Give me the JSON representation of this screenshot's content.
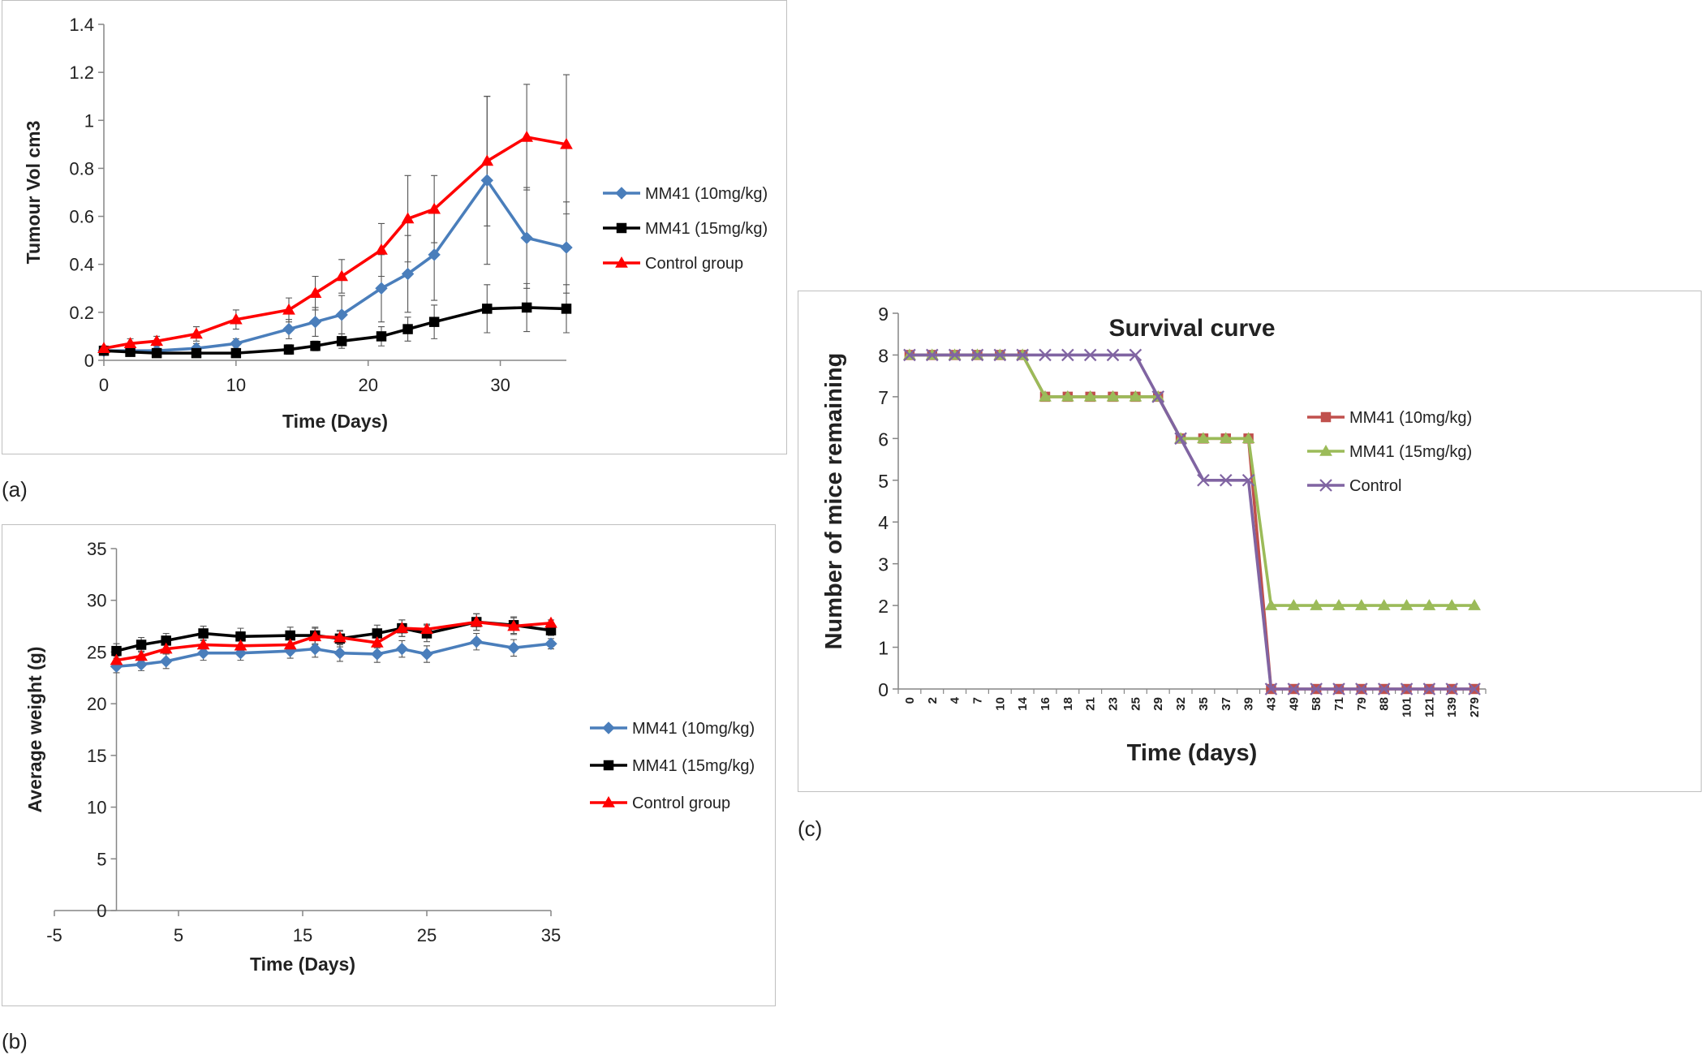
{
  "panels": {
    "a": {
      "label": "(a)"
    },
    "b": {
      "label": "(b)"
    },
    "c": {
      "label": "(c)"
    }
  },
  "chart_data": [
    {
      "id": "a",
      "type": "line",
      "title": "",
      "xlabel": "Time (Days)",
      "ylabel": "Tumour Vol cm3",
      "xlim": [
        0,
        35
      ],
      "ylim": [
        0,
        1.4
      ],
      "xticks": [
        0,
        10,
        20,
        30
      ],
      "yticks": [
        0,
        0.2,
        0.4,
        0.6,
        0.8,
        1,
        1.2,
        1.4
      ],
      "ytick_labels": [
        "0",
        "0.2",
        "0.4",
        "0.6",
        "0.8",
        "1",
        "1.2",
        "1.4"
      ],
      "legend_position": "right",
      "series": [
        {
          "name": "MM41 (10mg/kg)",
          "color": "#4a7ebb",
          "marker": "diamond",
          "x": [
            0,
            2,
            4,
            7,
            10,
            14,
            16,
            18,
            21,
            23,
            25,
            29,
            32,
            35
          ],
          "y": [
            0.04,
            0.04,
            0.04,
            0.05,
            0.07,
            0.13,
            0.16,
            0.19,
            0.3,
            0.36,
            0.44,
            0.75,
            0.51,
            0.47
          ],
          "err": [
            0.01,
            0.01,
            0.01,
            0.02,
            0.02,
            0.04,
            0.06,
            0.08,
            0.14,
            0.16,
            0.19,
            0.35,
            0.21,
            0.19
          ]
        },
        {
          "name": "MM41 (15mg/kg)",
          "color": "#000000",
          "marker": "square",
          "x": [
            0,
            2,
            4,
            7,
            10,
            14,
            16,
            18,
            21,
            23,
            25,
            29,
            32,
            35
          ],
          "y": [
            0.04,
            0.035,
            0.03,
            0.03,
            0.03,
            0.045,
            0.06,
            0.08,
            0.1,
            0.13,
            0.16,
            0.215,
            0.22,
            0.215
          ],
          "err": [
            0.01,
            0.01,
            0.01,
            0.01,
            0.01,
            0.02,
            0.02,
            0.03,
            0.04,
            0.05,
            0.07,
            0.1,
            0.1,
            0.1
          ]
        },
        {
          "name": "Control group",
          "color": "#ff0000",
          "marker": "triangle",
          "x": [
            0,
            2,
            4,
            7,
            10,
            14,
            16,
            18,
            21,
            23,
            25,
            29,
            32,
            35
          ],
          "y": [
            0.05,
            0.07,
            0.08,
            0.11,
            0.17,
            0.21,
            0.28,
            0.35,
            0.46,
            0.59,
            0.63,
            0.83,
            0.93,
            0.9
          ],
          "err": [
            0.01,
            0.02,
            0.02,
            0.03,
            0.04,
            0.05,
            0.07,
            0.07,
            0.11,
            0.18,
            0.14,
            0.27,
            0.22,
            0.29
          ]
        }
      ]
    },
    {
      "id": "b",
      "type": "line",
      "title": "",
      "xlabel": "Time (Days)",
      "ylabel": "Average weight (g)",
      "xlim": [
        -5,
        35
      ],
      "ylim": [
        0,
        35
      ],
      "xticks": [
        -5,
        5,
        15,
        25,
        35
      ],
      "yticks": [
        0,
        5,
        10,
        15,
        20,
        25,
        30,
        35
      ],
      "legend_position": "right",
      "series": [
        {
          "name": "MM41 (10mg/kg)",
          "color": "#4a7ebb",
          "marker": "diamond",
          "x": [
            0,
            2,
            4,
            7,
            10,
            14,
            16,
            18,
            21,
            23,
            25,
            29,
            32,
            35
          ],
          "y": [
            23.6,
            23.8,
            24.1,
            24.9,
            24.9,
            25.1,
            25.3,
            24.9,
            24.8,
            25.3,
            24.8,
            26.0,
            25.4,
            25.8
          ],
          "err": [
            0.6,
            0.6,
            0.7,
            0.7,
            0.7,
            0.7,
            0.8,
            0.8,
            0.8,
            0.8,
            0.8,
            0.8,
            0.8,
            0.5
          ]
        },
        {
          "name": "MM41 (15mg/kg)",
          "color": "#000000",
          "marker": "square",
          "x": [
            0,
            2,
            4,
            7,
            10,
            14,
            16,
            18,
            21,
            23,
            25,
            29,
            32,
            35
          ],
          "y": [
            25.1,
            25.7,
            26.1,
            26.8,
            26.5,
            26.6,
            26.6,
            26.3,
            26.8,
            27.3,
            26.8,
            27.9,
            27.6,
            27.1
          ],
          "err": [
            0.7,
            0.7,
            0.7,
            0.7,
            0.8,
            0.8,
            0.8,
            0.8,
            0.8,
            0.8,
            0.8,
            0.8,
            0.8,
            0.5
          ]
        },
        {
          "name": "Control group",
          "color": "#ff0000",
          "marker": "triangle",
          "x": [
            0,
            2,
            4,
            7,
            10,
            14,
            16,
            18,
            21,
            23,
            25,
            29,
            32,
            35
          ],
          "y": [
            24.2,
            24.6,
            25.3,
            25.7,
            25.6,
            25.7,
            26.5,
            26.4,
            25.9,
            27.3,
            27.2,
            27.9,
            27.5,
            27.8
          ],
          "err": [
            0.4,
            0.5,
            0.5,
            0.5,
            0.5,
            0.5,
            0.8,
            0.6,
            0.5,
            0.8,
            0.5,
            0.8,
            0.8,
            0.3
          ]
        }
      ]
    },
    {
      "id": "c",
      "type": "line",
      "title": "Survival curve",
      "xlabel": "Time (days)",
      "ylabel": "Number of mice remaining",
      "ylim": [
        0,
        9
      ],
      "yticks": [
        0,
        1,
        2,
        3,
        4,
        5,
        6,
        7,
        8,
        9
      ],
      "categories": [
        "0",
        "2",
        "4",
        "7",
        "10",
        "14",
        "16",
        "18",
        "21",
        "23",
        "25",
        "29",
        "32",
        "35",
        "37",
        "39",
        "43",
        "49",
        "58",
        "71",
        "79",
        "88",
        "101",
        "121",
        "139",
        "279"
      ],
      "legend_position": "right",
      "series": [
        {
          "name": "MM41 (10mg/kg)",
          "color": "#c0504d",
          "marker": "square",
          "values": [
            8,
            8,
            8,
            8,
            8,
            8,
            7,
            7,
            7,
            7,
            7,
            7,
            6,
            6,
            6,
            6,
            0,
            0,
            0,
            0,
            0,
            0,
            0,
            0,
            0,
            0
          ]
        },
        {
          "name": "MM41 (15mg/kg)",
          "color": "#9bbb59",
          "marker": "triangle",
          "values": [
            8,
            8,
            8,
            8,
            8,
            8,
            7,
            7,
            7,
            7,
            7,
            7,
            6,
            6,
            6,
            6,
            2,
            2,
            2,
            2,
            2,
            2,
            2,
            2,
            2,
            2
          ]
        },
        {
          "name": "Control",
          "color": "#8064a2",
          "marker": "x",
          "values": [
            8,
            8,
            8,
            8,
            8,
            8,
            8,
            8,
            8,
            8,
            8,
            7,
            6,
            5,
            5,
            5,
            0,
            0,
            0,
            0,
            0,
            0,
            0,
            0,
            0,
            0
          ]
        }
      ]
    }
  ]
}
